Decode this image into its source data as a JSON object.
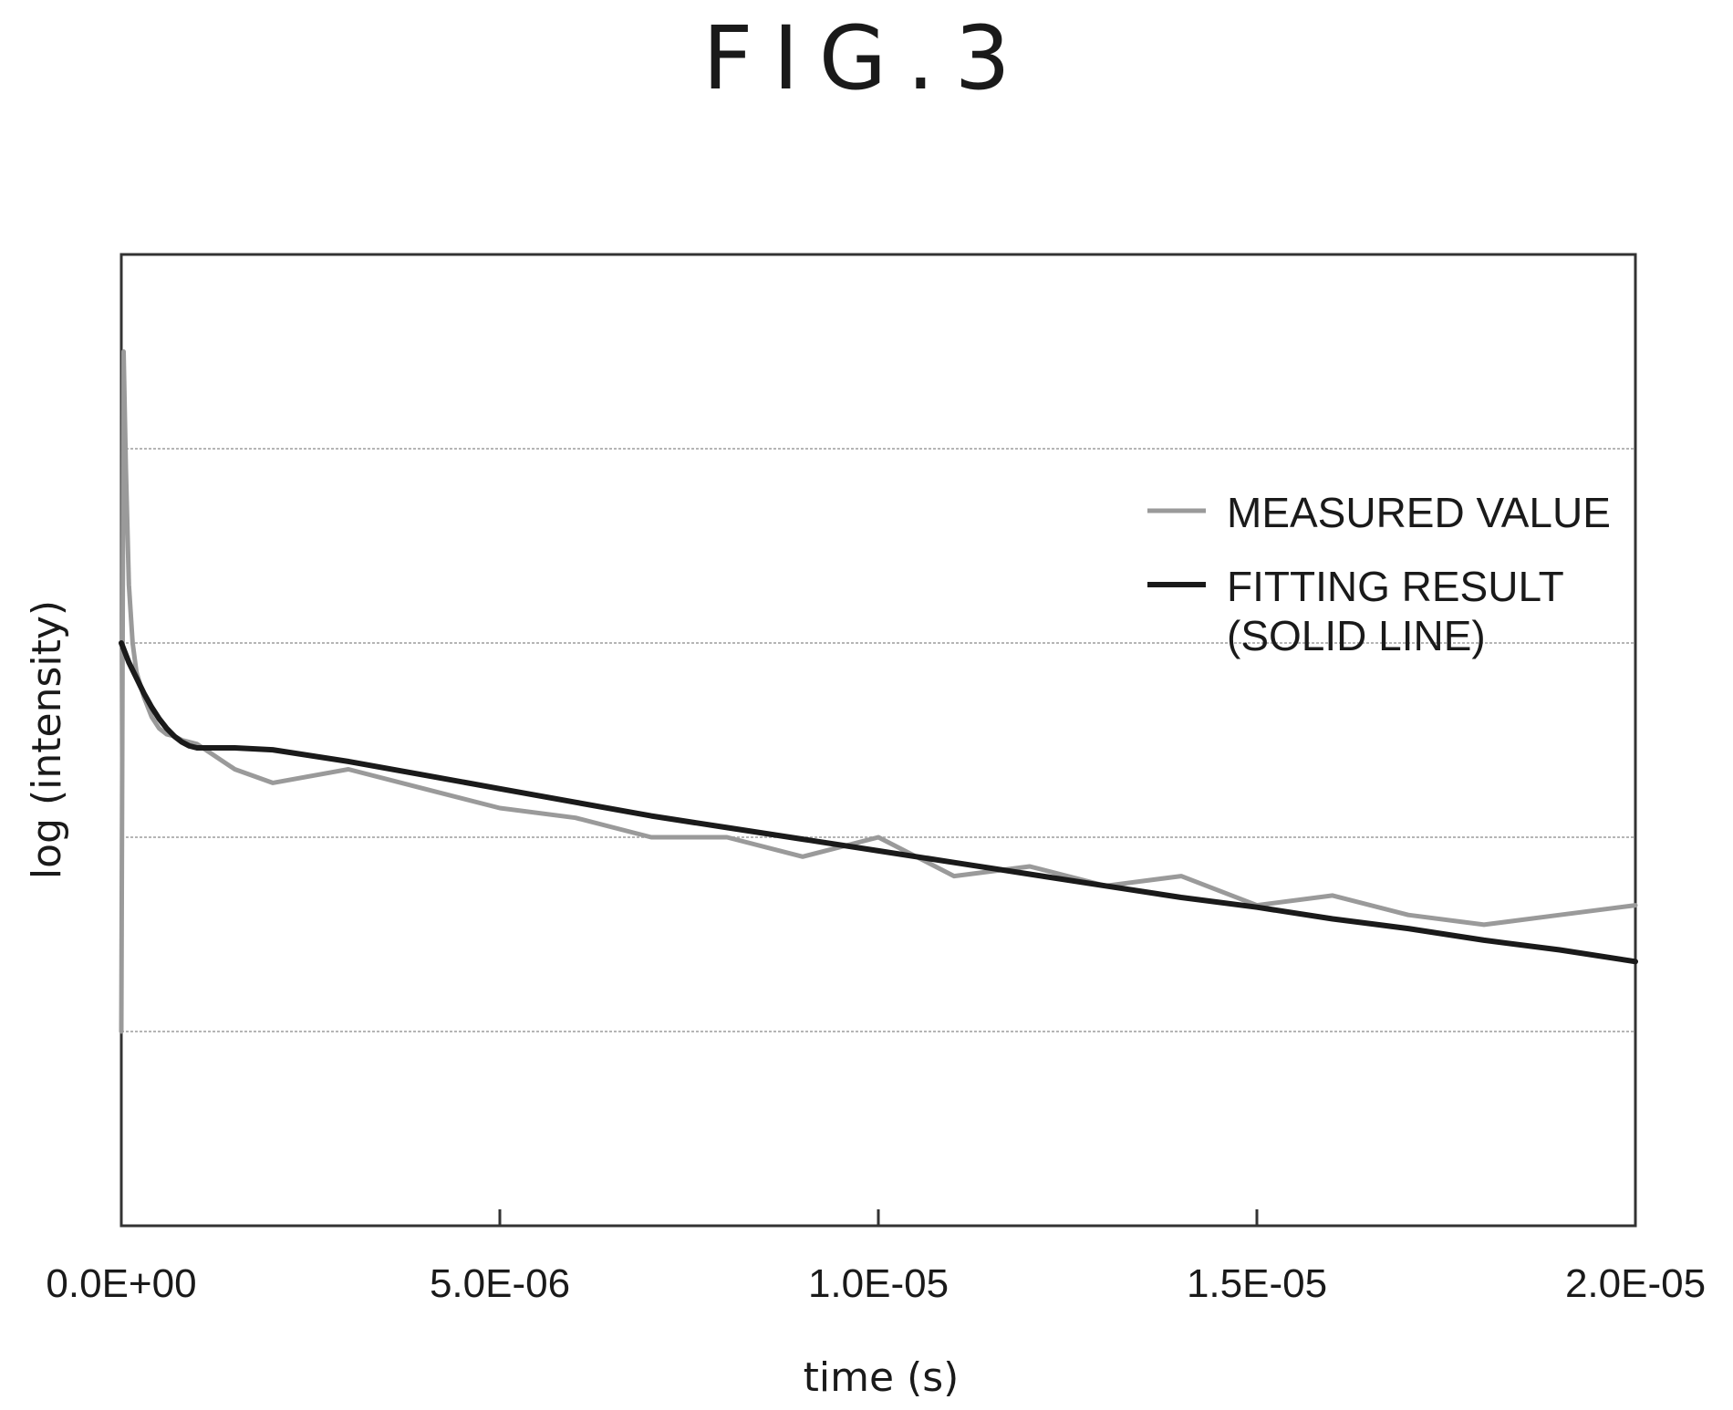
{
  "figure_label": "FIG.3",
  "chart_data": {
    "type": "line",
    "xlabel": "time (s)",
    "ylabel": "log (intensity)",
    "xlim": [
      0,
      2e-05
    ],
    "ylim": [
      0,
      5
    ],
    "x_ticks": [
      0,
      5e-06,
      1e-05,
      1.5e-05,
      2e-05
    ],
    "x_tick_labels": [
      "0.0E+00",
      "5.0E-06",
      "1.0E-05",
      "1.5E-05",
      "2.0E-05"
    ],
    "y_gridlines": [
      1,
      2,
      3,
      4
    ],
    "grid": "horizontal",
    "legend_position": "right",
    "legend": {
      "measured": "MEASURED VALUE",
      "fit_line1": "FITTING RESULT",
      "fit_line2": "(SOLID LINE)"
    },
    "series": [
      {
        "name": "MEASURED VALUE",
        "color": "#9a9a9a",
        "x": [
          0,
          3e-08,
          6e-08,
          1e-07,
          1.5e-07,
          2e-07,
          3e-07,
          4e-07,
          5e-07,
          6e-07,
          7e-07,
          8e-07,
          1e-06,
          1.5e-06,
          2e-06,
          3e-06,
          4e-06,
          5e-06,
          6e-06,
          7e-06,
          8e-06,
          9e-06,
          1e-05,
          1.1e-05,
          1.2e-05,
          1.3e-05,
          1.4e-05,
          1.5e-05,
          1.6e-05,
          1.7e-05,
          1.8e-05,
          1.9e-05,
          2e-05
        ],
        "y": [
          1.0,
          4.5,
          3.9,
          3.3,
          3.0,
          2.85,
          2.72,
          2.62,
          2.56,
          2.53,
          2.52,
          2.5,
          2.48,
          2.35,
          2.28,
          2.35,
          2.25,
          2.15,
          2.1,
          2.0,
          2.0,
          1.9,
          2.0,
          1.8,
          1.85,
          1.75,
          1.8,
          1.65,
          1.7,
          1.6,
          1.55,
          1.6,
          1.65
        ]
      },
      {
        "name": "FITTING RESULT",
        "color": "#1a1a1a",
        "x": [
          0,
          1e-07,
          2e-07,
          3e-07,
          4e-07,
          5e-07,
          6e-07,
          7e-07,
          8e-07,
          9e-07,
          1e-06,
          1.2e-06,
          1.5e-06,
          2e-06,
          3e-06,
          4e-06,
          5e-06,
          6e-06,
          7e-06,
          8e-06,
          9e-06,
          1e-05,
          1.1e-05,
          1.2e-05,
          1.3e-05,
          1.4e-05,
          1.5e-05,
          1.6e-05,
          1.7e-05,
          1.8e-05,
          1.9e-05,
          2e-05
        ],
        "y": [
          3.0,
          2.9,
          2.82,
          2.74,
          2.67,
          2.61,
          2.56,
          2.52,
          2.49,
          2.47,
          2.46,
          2.46,
          2.46,
          2.45,
          2.39,
          2.32,
          2.25,
          2.18,
          2.11,
          2.05,
          1.99,
          1.93,
          1.87,
          1.81,
          1.75,
          1.69,
          1.64,
          1.58,
          1.53,
          1.47,
          1.42,
          1.36
        ]
      }
    ]
  }
}
